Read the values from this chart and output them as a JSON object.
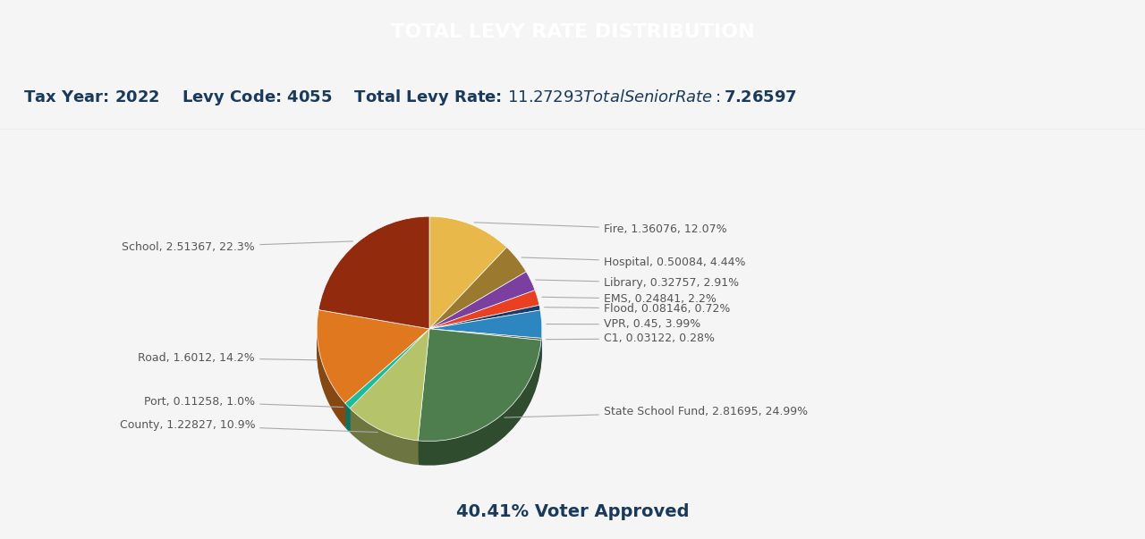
{
  "title": "TOTAL LEVY RATE DISTRIBUTION",
  "tax_year": "2022",
  "levy_code": "4055",
  "total_levy_rate": "$11.27293",
  "total_senior_rate": "$7.26597",
  "voter_approved": "40.41% Voter Approved",
  "header_bg": "#1a5276",
  "header_text": "#ffffff",
  "info_bg": "#f0f0f0",
  "chart_bg": "#ffffff",
  "slices": [
    {
      "label": "Fire",
      "value": 1.36076,
      "pct": 12.07,
      "color": "#E8B84B"
    },
    {
      "label": "Hospital",
      "value": 0.50084,
      "pct": 4.44,
      "color": "#9B7A2F"
    },
    {
      "label": "Library",
      "value": 0.32757,
      "pct": 2.91,
      "color": "#7B3FA0"
    },
    {
      "label": "EMS",
      "value": 0.24841,
      "pct": 2.2,
      "color": "#E84020"
    },
    {
      "label": "Flood",
      "value": 0.08146,
      "pct": 0.72,
      "color": "#1A3A6A"
    },
    {
      "label": "VPR",
      "value": 0.45,
      "pct": 3.99,
      "color": "#2E86C1"
    },
    {
      "label": "C1",
      "value": 0.03122,
      "pct": 0.28,
      "color": "#555555"
    },
    {
      "label": "State School Fund",
      "value": 2.81695,
      "pct": 24.99,
      "color": "#4E7E4E"
    },
    {
      "label": "County",
      "value": 1.22827,
      "pct": 10.9,
      "color": "#B5C46A"
    },
    {
      "label": "Port",
      "value": 0.11258,
      "pct": 1.0,
      "color": "#1ABC9C"
    },
    {
      "label": "Road",
      "value": 1.6012,
      "pct": 14.2,
      "color": "#E07820"
    },
    {
      "label": "School",
      "value": 2.51367,
      "pct": 22.3,
      "color": "#922B0E"
    }
  ],
  "label_fontsize": 9,
  "annotation_color": "#555555"
}
